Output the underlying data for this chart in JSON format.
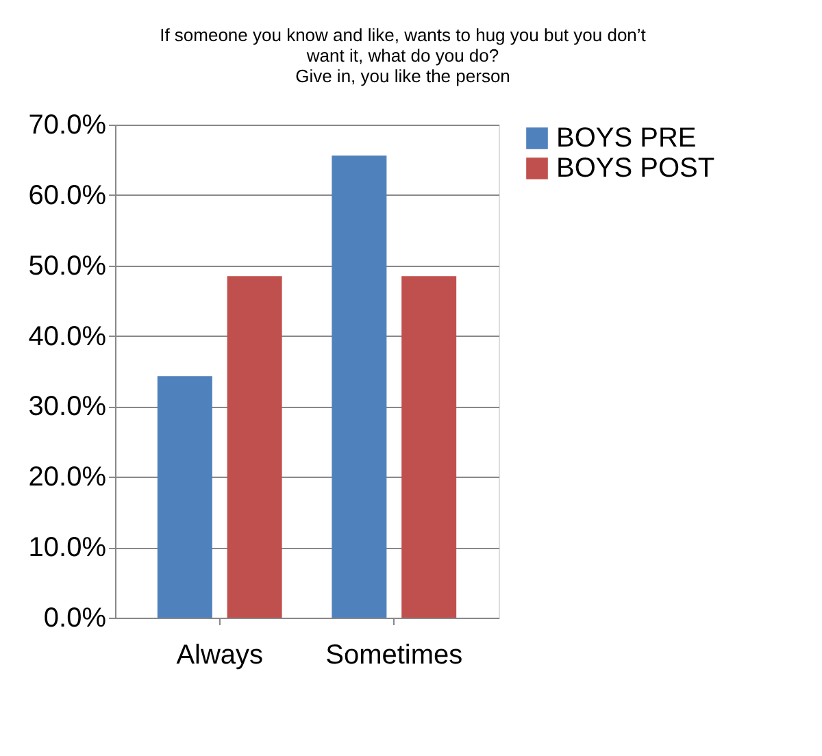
{
  "chart_data": {
    "type": "bar",
    "title": "If someone you know and like, wants to hug you but you don’t want it, what do you do?",
    "subtitle": "Give in, you like the person",
    "categories": [
      "Always",
      "Sometimes"
    ],
    "series": [
      {
        "name": "BOYS PRE",
        "color": "#4f81bd",
        "values": [
          34.3,
          65.6
        ]
      },
      {
        "name": "BOYS POST",
        "color": "#c0504d",
        "values": [
          48.5,
          48.5
        ]
      }
    ],
    "ylim": [
      0,
      70
    ],
    "yticks": [
      {
        "value": 0,
        "label": "0.0%"
      },
      {
        "value": 10,
        "label": "10.0%"
      },
      {
        "value": 20,
        "label": "20.0%"
      },
      {
        "value": 30,
        "label": "30.0%"
      },
      {
        "value": 40,
        "label": "40.0%"
      },
      {
        "value": 50,
        "label": "50.0%"
      },
      {
        "value": 60,
        "label": "60.0%"
      },
      {
        "value": 70,
        "label": "70.0%"
      }
    ],
    "grid": "y",
    "legend": "right"
  }
}
